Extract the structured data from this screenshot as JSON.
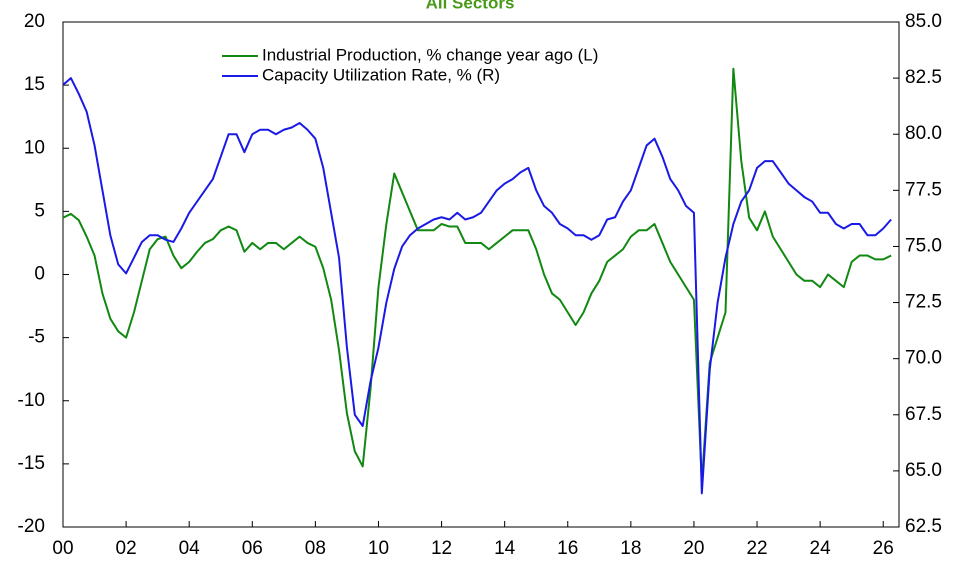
{
  "chart_data": {
    "type": "line",
    "title": "All Sectors",
    "x": [
      2000,
      2000.25,
      2000.5,
      2000.75,
      2001,
      2001.25,
      2001.5,
      2001.75,
      2002,
      2002.25,
      2002.5,
      2002.75,
      2003,
      2003.25,
      2003.5,
      2003.75,
      2004,
      2004.25,
      2004.5,
      2004.75,
      2005,
      2005.25,
      2005.5,
      2005.75,
      2006,
      2006.25,
      2006.5,
      2006.75,
      2007,
      2007.25,
      2007.5,
      2007.75,
      2008,
      2008.25,
      2008.5,
      2008.75,
      2009,
      2009.25,
      2009.5,
      2009.75,
      2010,
      2010.25,
      2010.5,
      2010.75,
      2011,
      2011.25,
      2011.5,
      2011.75,
      2012,
      2012.25,
      2012.5,
      2012.75,
      2013,
      2013.25,
      2013.5,
      2013.75,
      2014,
      2014.25,
      2014.5,
      2014.75,
      2015,
      2015.25,
      2015.5,
      2015.75,
      2016,
      2016.25,
      2016.5,
      2016.75,
      2017,
      2017.25,
      2017.5,
      2017.75,
      2018,
      2018.25,
      2018.5,
      2018.75,
      2019,
      2019.25,
      2019.5,
      2019.75,
      2020,
      2020.25,
      2020.5,
      2020.75,
      2021,
      2021.25,
      2021.5,
      2021.75,
      2022,
      2022.25,
      2022.5,
      2022.75,
      2023,
      2023.25,
      2023.5,
      2023.75,
      2024,
      2024.25,
      2024.5,
      2024.75,
      2025,
      2025.25,
      2025.5,
      2025.75,
      2026,
      2026.25
    ],
    "series": [
      {
        "name": "Industrial Production, % change year ago (L)",
        "color": "#118811",
        "axis": "y",
        "values": [
          4.5,
          4.8,
          4.3,
          3.0,
          1.5,
          -1.5,
          -3.5,
          -4.5,
          -5.0,
          -3,
          -0.5,
          2,
          2.8,
          3.0,
          1.5,
          0.5,
          1,
          1.8,
          2.5,
          2.8,
          3.5,
          3.8,
          3.5,
          1.8,
          2.5,
          2.0,
          2.5,
          2.5,
          2.0,
          2.5,
          3,
          2.5,
          2.2,
          0.5,
          -2,
          -6,
          -11,
          -14,
          -15.2,
          -9,
          -1,
          4,
          8,
          6.5,
          5,
          3.5,
          3.5,
          3.5,
          4,
          3.8,
          3.8,
          2.5,
          2.5,
          2.5,
          2,
          2.5,
          3,
          3.5,
          3.5,
          3.5,
          2,
          0,
          -1.5,
          -2,
          -3,
          -4,
          -3,
          -1.5,
          -0.5,
          1,
          1.5,
          2,
          3,
          3.5,
          3.5,
          4,
          2.5,
          1,
          0,
          -1,
          -2,
          -16.5,
          -7,
          -5,
          -3,
          16.3,
          9,
          4.5,
          3.5,
          5,
          3,
          2,
          1,
          0,
          -0.5,
          -0.5,
          -1,
          0,
          -0.5,
          -1,
          1,
          1.5,
          1.5,
          1.2,
          1.2,
          1.5
        ]
      },
      {
        "name": "Capacity Utilization Rate, % (R)",
        "color": "#1a1ae6",
        "axis": "y2",
        "values": [
          82.2,
          82.5,
          81.8,
          81,
          79.5,
          77.5,
          75.5,
          74.2,
          73.8,
          74.5,
          75.2,
          75.5,
          75.5,
          75.3,
          75.2,
          75.8,
          76.5,
          77,
          77.5,
          78,
          79,
          80.0,
          80,
          79.2,
          80,
          80.2,
          80.2,
          80.0,
          80.2,
          80.3,
          80.5,
          80.2,
          79.8,
          78.5,
          76.5,
          74.5,
          70.5,
          67.5,
          67.0,
          69,
          70.5,
          72.5,
          74,
          75,
          75.5,
          75.8,
          76,
          76.2,
          76.3,
          76.2,
          76.5,
          76.2,
          76.3,
          76.5,
          77,
          77.5,
          77.8,
          78,
          78.3,
          78.5,
          77.5,
          76.8,
          76.5,
          76,
          75.8,
          75.5,
          75.5,
          75.3,
          75.5,
          76.2,
          76.3,
          77,
          77.5,
          78.5,
          79.5,
          79.8,
          79,
          78,
          77.5,
          76.8,
          76.5,
          64,
          69.5,
          72.5,
          74.5,
          76,
          77,
          77.5,
          78.5,
          78.8,
          78.8,
          78.3,
          77.8,
          77.5,
          77.2,
          77,
          76.5,
          76.5,
          76,
          75.8,
          76,
          76,
          75.5,
          75.5,
          75.8,
          76.2
        ]
      }
    ],
    "xlim": [
      2000,
      2026.5
    ],
    "xticks": [
      {
        "value": 2000,
        "label": "00"
      },
      {
        "value": 2002,
        "label": "02"
      },
      {
        "value": 2004,
        "label": "04"
      },
      {
        "value": 2006,
        "label": "06"
      },
      {
        "value": 2008,
        "label": "08"
      },
      {
        "value": 2010,
        "label": "10"
      },
      {
        "value": 2012,
        "label": "12"
      },
      {
        "value": 2014,
        "label": "14"
      },
      {
        "value": 2016,
        "label": "16"
      },
      {
        "value": 2018,
        "label": "18"
      },
      {
        "value": 2020,
        "label": "20"
      },
      {
        "value": 2022,
        "label": "22"
      },
      {
        "value": 2024,
        "label": "24"
      },
      {
        "value": 2026,
        "label": "26"
      }
    ],
    "ylim": [
      -20,
      20
    ],
    "yticks": [
      -20,
      -15,
      -10,
      -5,
      0,
      5,
      10,
      15,
      20
    ],
    "y2lim": [
      62.5,
      85
    ],
    "y2ticks": [
      {
        "value": 62.5,
        "label": "62.5"
      },
      {
        "value": 65,
        "label": "65.0"
      },
      {
        "value": 67.5,
        "label": "67.5"
      },
      {
        "value": 70,
        "label": "70.0"
      },
      {
        "value": 72.5,
        "label": "72.5"
      },
      {
        "value": 75,
        "label": "75.0"
      },
      {
        "value": 77.5,
        "label": "77.5"
      },
      {
        "value": 80,
        "label": "80.0"
      },
      {
        "value": 82.5,
        "label": "82.5"
      },
      {
        "value": 85,
        "label": "85.0"
      }
    ],
    "legend": "top"
  }
}
